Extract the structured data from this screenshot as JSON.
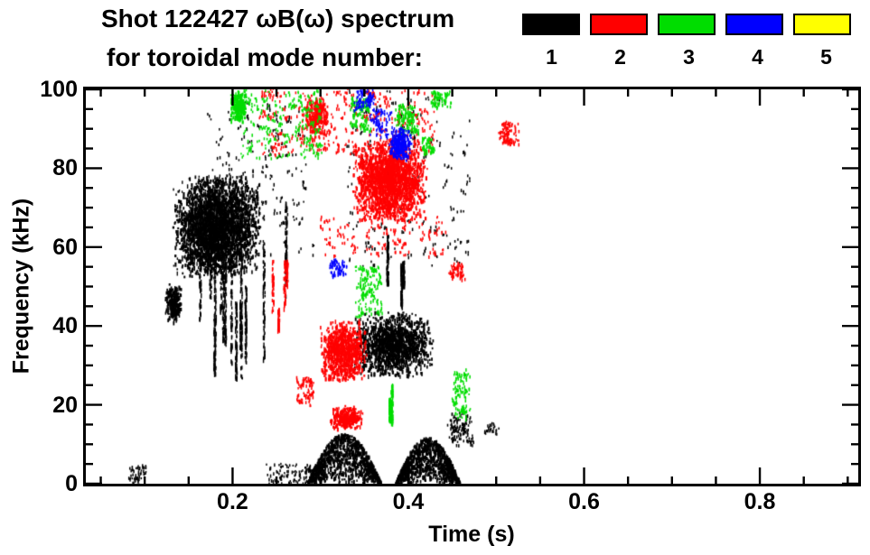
{
  "header": {
    "line1": "Shot 122427 ωB(ω) spectrum",
    "line2": "for toroidal mode number:"
  },
  "legend": {
    "modes": [
      {
        "label": "1",
        "color": "#000000"
      },
      {
        "label": "2",
        "color": "#ff0000"
      },
      {
        "label": "3",
        "color": "#00dd00"
      },
      {
        "label": "4",
        "color": "#0000ff"
      },
      {
        "label": "5",
        "color": "#ffff00"
      }
    ]
  },
  "chart_data": {
    "type": "scatter",
    "title": "Shot 122427 ωB(ω) spectrum for toroidal mode number 1-5",
    "xlabel": "Time (s)",
    "ylabel": "Frequency (kHz)",
    "xlim": [
      0.033,
      0.912
    ],
    "ylim": [
      0,
      100
    ],
    "grid": false,
    "legend_position": "top-right",
    "xticks": [
      {
        "value": 0.2,
        "label": "0.2"
      },
      {
        "value": 0.4,
        "label": "0.4"
      },
      {
        "value": 0.6,
        "label": "0.6"
      },
      {
        "value": 0.8,
        "label": "0.8"
      }
    ],
    "yticks": [
      {
        "value": 0,
        "label": "0"
      },
      {
        "value": 20,
        "label": "20"
      },
      {
        "value": 40,
        "label": "40"
      },
      {
        "value": 60,
        "label": "60"
      },
      {
        "value": 80,
        "label": "80"
      },
      {
        "value": 100,
        "label": "100"
      }
    ],
    "x_minor_step": 0.05,
    "y_minor_step": 5,
    "series": [
      {
        "name": "1",
        "color": "#000000",
        "clusters": [
          {
            "style": "blob",
            "t": [
              0.13,
              0.232
            ],
            "f": [
              52,
              79
            ],
            "n": 3000
          },
          {
            "style": "blob",
            "t": [
              0.122,
              0.142
            ],
            "f": [
              41,
              51
            ],
            "n": 260
          },
          {
            "style": "streaks",
            "t": [
              0.15,
              0.278
            ],
            "f": [
              24,
              72
            ],
            "n": 1100,
            "k": 14
          },
          {
            "style": "blob",
            "t": [
              0.335,
              0.428
            ],
            "f": [
              27,
              44
            ],
            "n": 1400
          },
          {
            "style": "streaks",
            "t": [
              0.368,
              0.396
            ],
            "f": [
              44,
              64
            ],
            "n": 260,
            "k": 3
          },
          {
            "style": "hump",
            "t": [
              0.285,
              0.368
            ],
            "f": [
              0.5,
              13
            ],
            "n": 1100
          },
          {
            "style": "hump",
            "t": [
              0.385,
              0.458
            ],
            "f": [
              0.3,
              12
            ],
            "n": 1100
          },
          {
            "style": "sparse",
            "t": [
              0.168,
              0.292
            ],
            "f": [
              58,
              97
            ],
            "n": 130
          },
          {
            "style": "sparse",
            "t": [
              0.33,
              0.47
            ],
            "f": [
              55,
              100
            ],
            "n": 130
          },
          {
            "style": "sparse",
            "t": [
              0.24,
              0.3
            ],
            "f": [
              0,
              5
            ],
            "n": 70
          },
          {
            "style": "sparse",
            "t": [
              0.444,
              0.472
            ],
            "f": [
              10,
              18
            ],
            "n": 70
          },
          {
            "style": "sparse",
            "t": [
              0.082,
              0.1
            ],
            "f": [
              0.5,
              4.5
            ],
            "n": 30
          },
          {
            "style": "sparse",
            "t": [
              0.487,
              0.5
            ],
            "f": [
              13,
              16
            ],
            "n": 15
          }
        ]
      },
      {
        "name": "2",
        "color": "#ff0000",
        "clusters": [
          {
            "style": "blob",
            "t": [
              0.335,
              0.422
            ],
            "f": [
              66,
              88
            ],
            "n": 2000
          },
          {
            "style": "blob",
            "t": [
              0.298,
              0.352
            ],
            "f": [
              26,
              42
            ],
            "n": 900
          },
          {
            "style": "blob",
            "t": [
              0.31,
              0.348
            ],
            "f": [
              14,
              20
            ],
            "n": 300
          },
          {
            "style": "sparse",
            "t": [
              0.23,
              0.43
            ],
            "f": [
              84,
              100
            ],
            "n": 260
          },
          {
            "style": "blob",
            "t": [
              0.282,
              0.308
            ],
            "f": [
              88,
              99
            ],
            "n": 260
          },
          {
            "style": "streaks",
            "t": [
              0.242,
              0.268
            ],
            "f": [
              38,
              57
            ],
            "n": 160,
            "k": 4
          },
          {
            "style": "sparse",
            "t": [
              0.3,
              0.44
            ],
            "f": [
              58,
              68
            ],
            "n": 90
          },
          {
            "style": "sparse",
            "t": [
              0.503,
              0.524
            ],
            "f": [
              86,
              92
            ],
            "n": 60
          },
          {
            "style": "sparse",
            "t": [
              0.448,
              0.462
            ],
            "f": [
              52,
              56
            ],
            "n": 35
          },
          {
            "style": "sparse",
            "t": [
              0.272,
              0.29
            ],
            "f": [
              20,
              27
            ],
            "n": 50
          }
        ]
      },
      {
        "name": "3",
        "color": "#00dd00",
        "clusters": [
          {
            "style": "blob",
            "t": [
              0.196,
              0.216
            ],
            "f": [
              92,
              100
            ],
            "n": 260
          },
          {
            "style": "sparse",
            "t": [
              0.21,
              0.3
            ],
            "f": [
              83,
              100
            ],
            "n": 140
          },
          {
            "style": "sparse",
            "t": [
              0.335,
              0.355
            ],
            "f": [
              90,
              98
            ],
            "n": 70
          },
          {
            "style": "sparse",
            "t": [
              0.385,
              0.41
            ],
            "f": [
              89,
              96
            ],
            "n": 80
          },
          {
            "style": "sparse",
            "t": [
              0.425,
              0.446
            ],
            "f": [
              96,
              100
            ],
            "n": 40
          },
          {
            "style": "sparse",
            "t": [
              0.34,
              0.368
            ],
            "f": [
              43,
              55
            ],
            "n": 90
          },
          {
            "style": "streaks",
            "t": [
              0.366,
              0.386
            ],
            "f": [
              14,
              26
            ],
            "n": 140,
            "k": 2
          },
          {
            "style": "sparse",
            "t": [
              0.45,
              0.468
            ],
            "f": [
              17,
              29
            ],
            "n": 70
          },
          {
            "style": "sparse",
            "t": [
              0.414,
              0.428
            ],
            "f": [
              84,
              88
            ],
            "n": 30
          }
        ]
      },
      {
        "name": "4",
        "color": "#0000ff",
        "clusters": [
          {
            "style": "blob",
            "t": [
              0.376,
              0.404
            ],
            "f": [
              82,
              91
            ],
            "n": 260
          },
          {
            "style": "sparse",
            "t": [
              0.34,
              0.36
            ],
            "f": [
              95,
              100
            ],
            "n": 50
          },
          {
            "style": "sparse",
            "t": [
              0.312,
              0.328
            ],
            "f": [
              53,
              57
            ],
            "n": 35
          },
          {
            "style": "sparse",
            "t": [
              0.356,
              0.378
            ],
            "f": [
              88,
              95
            ],
            "n": 40
          }
        ]
      },
      {
        "name": "5",
        "color": "#ffff00",
        "clusters": []
      }
    ]
  }
}
